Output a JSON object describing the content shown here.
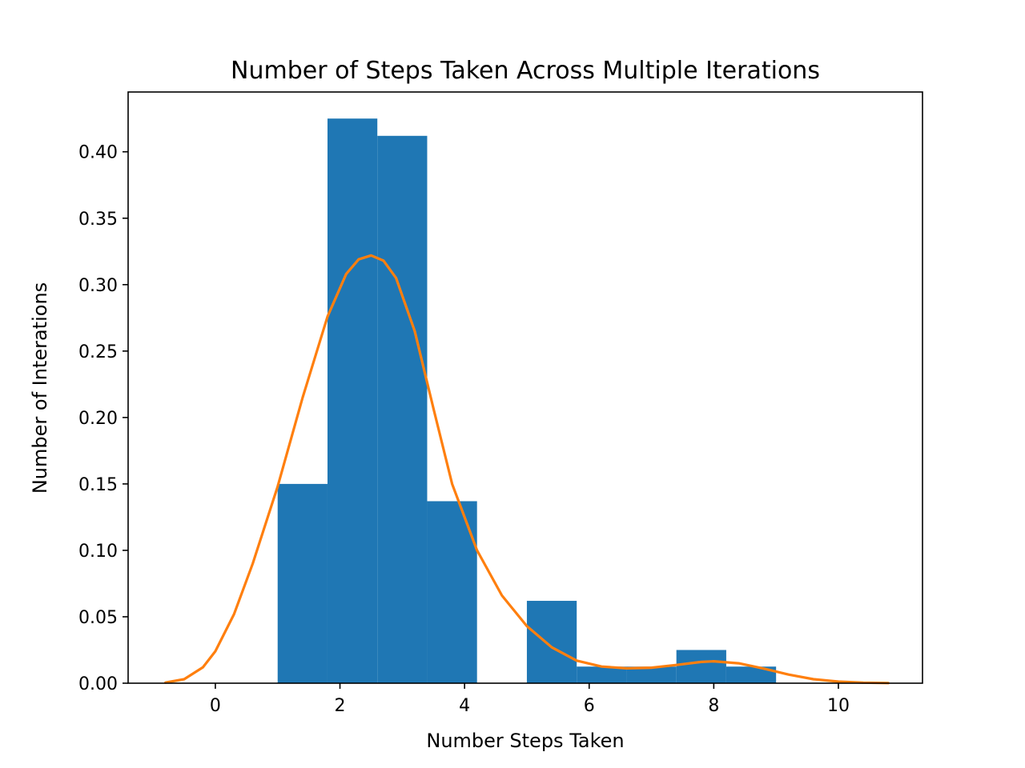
{
  "chart_data": {
    "type": "bar",
    "title": "Number of Steps Taken Across Multiple Iterations",
    "xlabel": "Number Steps Taken",
    "ylabel": "Number of Interations",
    "xlim": [
      -1.4,
      11.35
    ],
    "ylim": [
      0,
      0.445
    ],
    "xticks": [
      0,
      2,
      4,
      6,
      8,
      10
    ],
    "yticks": [
      0.0,
      0.05,
      0.1,
      0.15,
      0.2,
      0.25,
      0.3,
      0.35,
      0.4
    ],
    "ytick_labels": [
      "0.00",
      "0.05",
      "0.10",
      "0.15",
      "0.20",
      "0.25",
      "0.30",
      "0.35",
      "0.40"
    ],
    "grid": false,
    "legend": "none",
    "colors": {
      "bars": "#1f77b4",
      "curve": "#ff7f0e",
      "axes": "#000000"
    },
    "series": [
      {
        "type": "histogram",
        "bins": [
          {
            "x0": 1.0,
            "x1": 1.8,
            "value": 0.15
          },
          {
            "x0": 1.8,
            "x1": 2.6,
            "value": 0.425
          },
          {
            "x0": 2.6,
            "x1": 3.4,
            "value": 0.412
          },
          {
            "x0": 3.4,
            "x1": 4.2,
            "value": 0.137
          },
          {
            "x0": 4.2,
            "x1": 5.0,
            "value": 0.0
          },
          {
            "x0": 5.0,
            "x1": 5.8,
            "value": 0.062
          },
          {
            "x0": 5.8,
            "x1": 6.6,
            "value": 0.0125
          },
          {
            "x0": 6.6,
            "x1": 7.4,
            "value": 0.0125
          },
          {
            "x0": 7.4,
            "x1": 8.2,
            "value": 0.025
          },
          {
            "x0": 8.2,
            "x1": 9.0,
            "value": 0.0125
          }
        ]
      },
      {
        "type": "line",
        "x": [
          -0.8,
          -0.5,
          -0.2,
          0.0,
          0.3,
          0.6,
          1.0,
          1.4,
          1.8,
          2.1,
          2.3,
          2.5,
          2.7,
          2.9,
          3.2,
          3.5,
          3.8,
          4.2,
          4.6,
          5.0,
          5.4,
          5.8,
          6.2,
          6.6,
          7.0,
          7.4,
          7.8,
          8.0,
          8.4,
          8.8,
          9.2,
          9.6,
          10.0,
          10.4,
          10.8
        ],
        "y": [
          0.0005,
          0.003,
          0.012,
          0.024,
          0.052,
          0.09,
          0.148,
          0.215,
          0.276,
          0.308,
          0.319,
          0.322,
          0.318,
          0.305,
          0.265,
          0.207,
          0.15,
          0.1,
          0.066,
          0.043,
          0.027,
          0.017,
          0.0125,
          0.0112,
          0.0117,
          0.0137,
          0.016,
          0.0165,
          0.015,
          0.011,
          0.0065,
          0.003,
          0.0012,
          0.0004,
          0.0001
        ]
      }
    ]
  }
}
